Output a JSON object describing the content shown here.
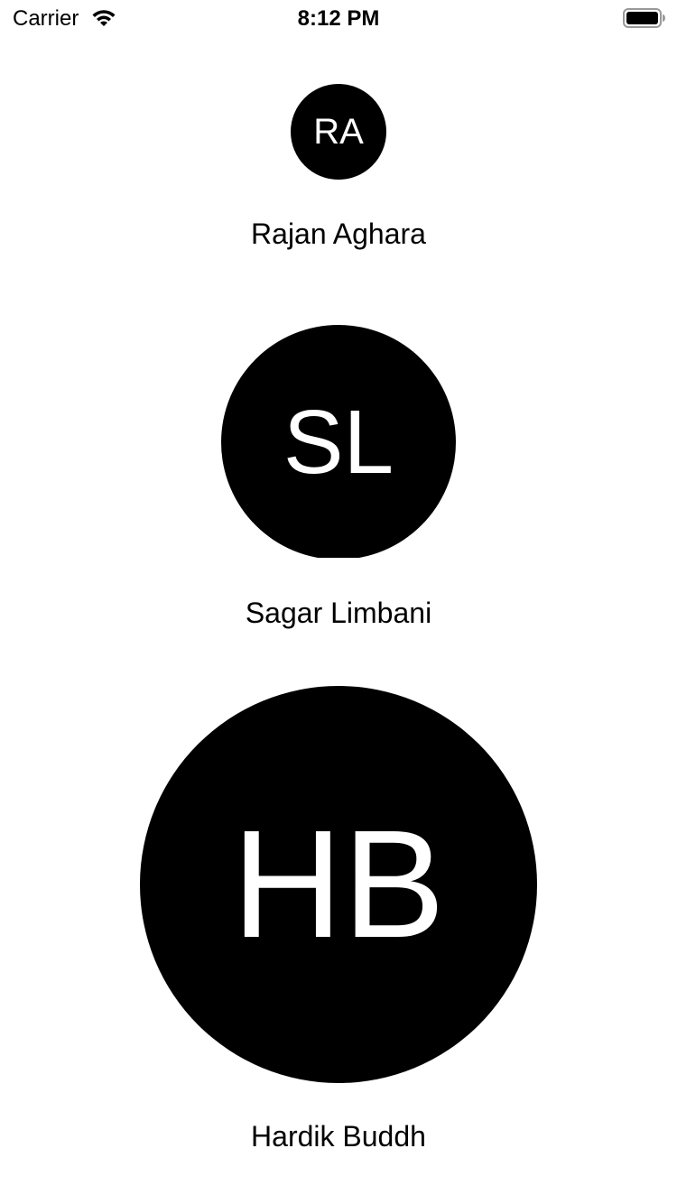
{
  "status_bar": {
    "carrier": "Carrier",
    "time": "8:12 PM",
    "wifi_icon": "wifi-icon",
    "battery_icon": "battery-icon"
  },
  "contacts": [
    {
      "initials": "RA",
      "name": "Rajan Aghara"
    },
    {
      "initials": "SL",
      "name": "Sagar Limbani"
    },
    {
      "initials": "HB",
      "name": "Hardik Buddh"
    }
  ],
  "colors": {
    "avatar_background": "#000000",
    "avatar_text": "#ffffff",
    "page_background": "#ffffff"
  }
}
